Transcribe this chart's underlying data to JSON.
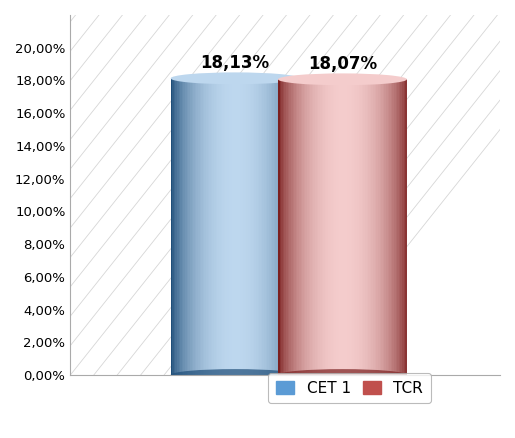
{
  "categories": [
    "CET 1",
    "TCR"
  ],
  "values": [
    0.1813,
    0.1807
  ],
  "labels": [
    "18,13%",
    "18,07%"
  ],
  "bar_colors_main": [
    "#5B9BD5",
    "#C0504D"
  ],
  "bar_colors_dark": [
    "#1F4E79",
    "#7B2020"
  ],
  "bar_colors_mid": [
    "#2E75B6",
    "#A03030"
  ],
  "bar_colors_light": [
    "#BDD7EE",
    "#F4CCCC"
  ],
  "ylim": [
    0,
    0.22
  ],
  "yticks": [
    0.0,
    0.02,
    0.04,
    0.06,
    0.08,
    0.1,
    0.12,
    0.14,
    0.16,
    0.18,
    0.2
  ],
  "ytick_labels": [
    "0,00%",
    "2,00%",
    "4,00%",
    "6,00%",
    "8,00%",
    "10,00%",
    "12,00%",
    "14,00%",
    "16,00%",
    "18,00%",
    "20,00%"
  ],
  "legend_labels": [
    "CET 1",
    "TCR"
  ],
  "background_color": "#FFFFFF",
  "label_fontsize": 12,
  "tick_fontsize": 9.5,
  "legend_fontsize": 11
}
